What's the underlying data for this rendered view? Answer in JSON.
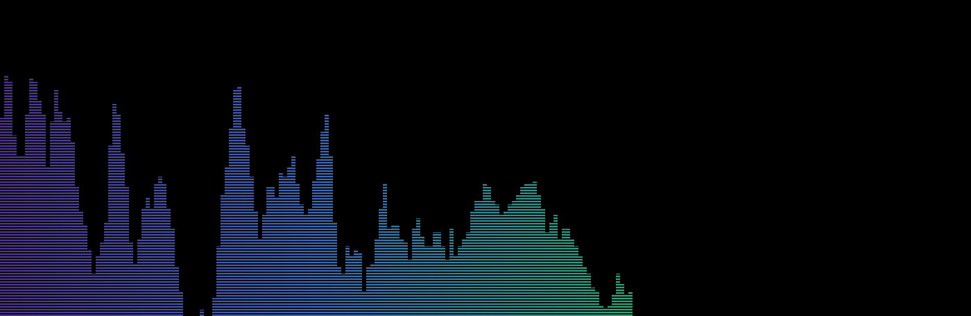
{
  "chart_data": {
    "type": "bar",
    "values": [
      62.7,
      76.3,
      74.1,
      57.2,
      50.7,
      50.7,
      63.8,
      75.2,
      74.1,
      68.2,
      63.8,
      47.4,
      61.6,
      71.5,
      64.9,
      61.6,
      62.7,
      55.0,
      40.8,
      33.1,
      28.7,
      21.1,
      13.4,
      18.9,
      23.2,
      29.8,
      53.9,
      67.1,
      63.8,
      51.8,
      40.8,
      23.2,
      16.7,
      24.3,
      34.2,
      37.5,
      34.2,
      41.9,
      44.1,
      41.9,
      34.2,
      27.6,
      15.6,
      7.9,
      0,
      0,
      0,
      0,
      2.0,
      0,
      0,
      5.7,
      22.1,
      38.6,
      47.4,
      59.4,
      71.5,
      72.6,
      59.4,
      53.9,
      44.1,
      33.1,
      24.3,
      32.0,
      40.8,
      40.8,
      37.5,
      45.2,
      44.1,
      47.4,
      50.7,
      41.9,
      35.3,
      32.0,
      34.2,
      43.0,
      49.6,
      58.3,
      63.8,
      50.7,
      29.8,
      15.6,
      13.4,
      22.1,
      18.9,
      21.1,
      20.0,
      7.9,
      15.6,
      16.7,
      24.3,
      34.2,
      41.9,
      27.6,
      28.7,
      28.7,
      24.3,
      23.2,
      17.8,
      27.6,
      30.9,
      25.4,
      22.1,
      22.1,
      26.5,
      26.5,
      22.1,
      17.8,
      27.6,
      18.9,
      22.1,
      24.3,
      26.5,
      33.1,
      36.4,
      36.4,
      41.9,
      40.8,
      36.4,
      35.3,
      32.0,
      33.1,
      35.3,
      36.4,
      38.6,
      40.8,
      41.9,
      41.9,
      42.5,
      38.6,
      34.2,
      26.5,
      29.8,
      32.0,
      24.3,
      27.6,
      27.6,
      24.3,
      22.1,
      18.9,
      15.6,
      13.4,
      9.0,
      7.9,
      3.5,
      2.4,
      3.5,
      6.8,
      13.4,
      10.1,
      6.8,
      7.9
    ],
    "colors": [
      "#4a3282",
      "#3a62aa",
      "#2c9c72"
    ],
    "ylim": [
      0,
      100
    ]
  }
}
